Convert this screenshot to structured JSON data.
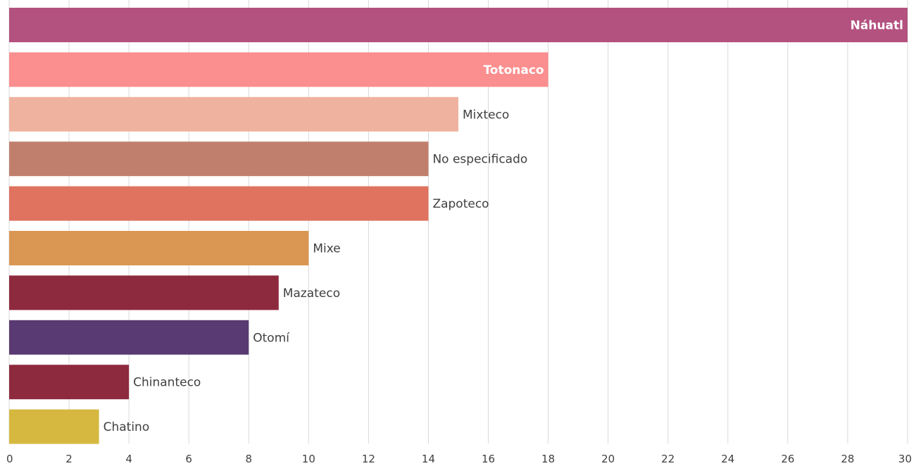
{
  "chart_data": {
    "type": "bar",
    "orientation": "horizontal",
    "title": "",
    "xlabel": "",
    "ylabel": "",
    "xlim": [
      0,
      30
    ],
    "x_ticks": [
      0,
      2,
      4,
      6,
      8,
      10,
      12,
      14,
      16,
      18,
      20,
      22,
      24,
      26,
      28,
      30
    ],
    "grid": "vertical",
    "categories": [
      "Náhuatl",
      "Totonaco",
      "Mixteco",
      "No especificado",
      "Zapoteco",
      "Mixe",
      "Mazateco",
      "Otomí",
      "Chinanteco",
      "Chatino"
    ],
    "values": [
      30,
      18,
      15,
      14,
      14,
      10,
      9,
      8,
      4,
      3
    ],
    "colors": [
      "#b3517f",
      "#fb8e8e",
      "#efb29f",
      "#c07f6d",
      "#df735f",
      "#da9753",
      "#8e2a3e",
      "#5a3a72",
      "#8e2a3e",
      "#d6b840"
    ],
    "label_inside": [
      true,
      true,
      false,
      false,
      false,
      false,
      false,
      false,
      false,
      false
    ]
  }
}
